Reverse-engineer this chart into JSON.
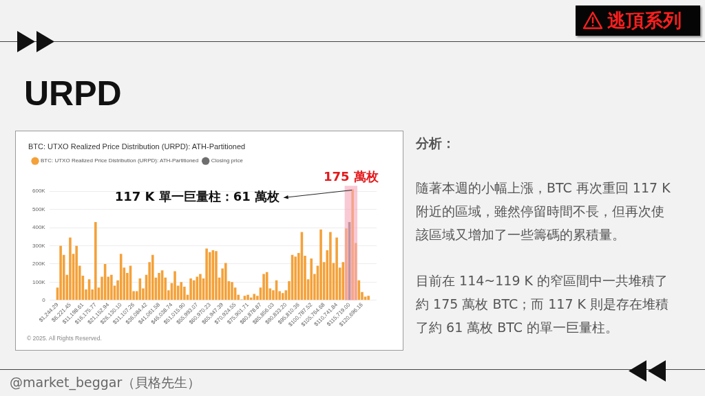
{
  "chart_data": {
    "type": "bar",
    "title": "URPD",
    "subtitle": "BTC: UTXO Realized Price Distribution (URPD): ATH-Partitioned",
    "x": [
      1244.29,
      2488.58,
      3732.87,
      4977.16,
      6221.45,
      7465.74,
      8710.03,
      9954.32,
      11198.61,
      12442.9,
      13687.19,
      14931.48,
      16175.77,
      17420.06,
      18664.36,
      19908.65,
      21152.94,
      22397.23,
      23641.52,
      24885.81,
      26130.1,
      27374.39,
      28618.68,
      29862.97,
      31107.26,
      32351.55,
      33595.84,
      34840.13,
      36084.42,
      37328.71,
      38573,
      39817.29,
      41061.58,
      42305.87,
      43550.16,
      44794.45,
      46038.74,
      47283.03,
      48527.32,
      49771.61,
      51015.9,
      52260.19,
      53504.49,
      54748.78,
      55993.07,
      57237.36,
      58481.65,
      59725.94,
      60970.23,
      62214.52,
      63458.81,
      64703.1,
      65947.39,
      67191.68,
      68435.97,
      69680.26,
      70924.55,
      72168.84,
      73413.13,
      74657.42,
      75901.71,
      77146,
      78390.29,
      79634.58,
      80878.87,
      82123.16,
      83367.45,
      84611.74,
      85856.03,
      87100.32,
      88344.61,
      89588.91,
      90833.2,
      92077.49,
      93321.78,
      94566.07,
      95810.36,
      97054.65,
      98298.94,
      99543.23,
      100787.52,
      102031.81,
      103276.1,
      104520.39,
      105764.68,
      107008.97,
      108253.26,
      109497.55,
      110741.84,
      111986.13,
      113230.42,
      114474.71,
      115719,
      116963.29,
      118207.58,
      119451.87,
      120696.16,
      121940.45,
      123184.74
    ],
    "series": [
      {
        "name": "BTC: UTXO Realized Price Distribution (URPD): ATH-Partitioned",
        "color": "#f4a13a",
        "values": [
          70000,
          300000,
          250000,
          140000,
          345000,
          255000,
          300000,
          190000,
          135000,
          60000,
          115000,
          60000,
          430000,
          70000,
          130000,
          200000,
          130000,
          140000,
          80000,
          110000,
          255000,
          180000,
          150000,
          190000,
          50000,
          50000,
          120000,
          65000,
          140000,
          210000,
          250000,
          125000,
          150000,
          165000,
          125000,
          55000,
          95000,
          160000,
          80000,
          100000,
          75000,
          30000,
          120000,
          110000,
          130000,
          145000,
          120000,
          285000,
          265000,
          275000,
          270000,
          125000,
          175000,
          205000,
          105000,
          100000,
          70000,
          30000,
          5000,
          25000,
          30000,
          15000,
          35000,
          25000,
          70000,
          145000,
          155000,
          65000,
          55000,
          110000,
          50000,
          40000,
          55000,
          105000,
          250000,
          240000,
          260000,
          375000,
          245000,
          115000,
          230000,
          145000,
          190000,
          390000,
          210000,
          275000,
          375000,
          205000,
          345000,
          180000,
          210000,
          395000,
          null,
          610000,
          315000,
          110000,
          45000,
          20000,
          25000
        ]
      },
      {
        "name": "Closing price",
        "color": "#6e6e6e",
        "x": [
          115719
        ],
        "values": [
          430000
        ]
      }
    ],
    "xlim": [
      622,
      123807
    ],
    "xticks": [
      {
        "value": 1244.29,
        "label": "$1,244.29"
      },
      {
        "value": 6221.45,
        "label": "$6,221.45"
      },
      {
        "value": 11198.61,
        "label": "$11,198.61"
      },
      {
        "value": 16175.77,
        "label": "$16,175.77"
      },
      {
        "value": 21152.94,
        "label": "$21,152.94"
      },
      {
        "value": 26130.1,
        "label": "$26,130.10"
      },
      {
        "value": 31107.26,
        "label": "$31,107.26"
      },
      {
        "value": 36084.42,
        "label": "$36,084.42"
      },
      {
        "value": 41061.58,
        "label": "$41,061.58"
      },
      {
        "value": 46038.74,
        "label": "$46,038.74"
      },
      {
        "value": 51015.9,
        "label": "$51,015.90"
      },
      {
        "value": 55993.07,
        "label": "$55,993.07"
      },
      {
        "value": 60970.23,
        "label": "$60,970.23"
      },
      {
        "value": 65947.39,
        "label": "$65,947.39"
      },
      {
        "value": 70924.55,
        "label": "$70,924.55"
      },
      {
        "value": 75901.71,
        "label": "$75,901.71"
      },
      {
        "value": 80878.87,
        "label": "$80,878.87"
      },
      {
        "value": 85856.03,
        "label": "$85,856.03"
      },
      {
        "value": 90833.2,
        "label": "$90,833.20"
      },
      {
        "value": 95810.36,
        "label": "$95,810.36"
      },
      {
        "value": 100787.52,
        "label": "$100,787.52"
      },
      {
        "value": 105764.68,
        "label": "$105,764.68"
      },
      {
        "value": 110741.84,
        "label": "$110,741.84"
      },
      {
        "value": 115719,
        "label": "$115,719.00"
      },
      {
        "value": 120696.16,
        "label": "$120,696.16"
      }
    ],
    "ylim": [
      0,
      630000
    ],
    "yticks": [
      0,
      {
        "value": 100000,
        "label": "100K"
      },
      {
        "value": 200000,
        "label": "200K"
      },
      {
        "value": 300000,
        "label": "300K"
      },
      {
        "value": 400000,
        "label": "400K"
      },
      {
        "value": 500000,
        "label": "500K"
      },
      {
        "value": 600000,
        "label": "600K"
      }
    ],
    "grid": "y",
    "legend": "top left",
    "bands": [
      {
        "axis": "x",
        "from": 113850,
        "to": 118830,
        "label": "175 萬枚",
        "color": "#f5a8bc"
      }
    ],
    "annotations": [
      {
        "text": "117 K 單一巨量柱：61 萬枚",
        "x": 116963.29,
        "y": 610000
      },
      "© 2025. All Rights Reserved.",
      "逃頂系列",
      "分析：",
      "隨著本週的小幅上漲，BTC 再次重回 117 K 附近的區域，雖然停留時間不長，但再次使該區域又增加了一些籌碼的累積量。",
      "目前在 114~119 K 的窄區間中一共堆積了約 175 萬枚 BTC；而 117 K 則是存在堆積了約 61 萬枚 BTC 的單一巨量柱。",
      "@market_beggar（貝格先生）"
    ]
  }
}
